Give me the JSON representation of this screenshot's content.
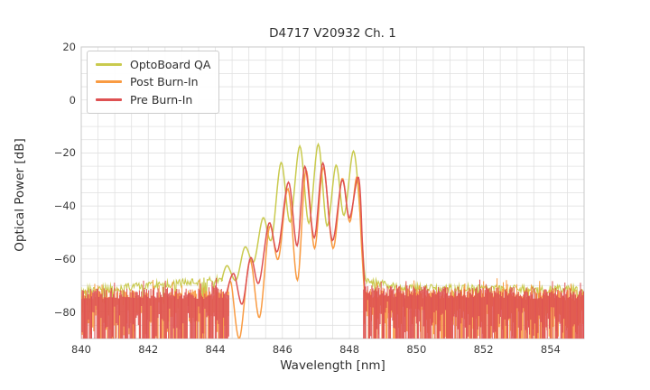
{
  "chart_data": {
    "type": "line",
    "title": "D4717 V20932 Ch. 1",
    "xlabel": "Wavelength [nm]",
    "ylabel": "Optical Power [dB]",
    "xlim": [
      840,
      855
    ],
    "ylim": [
      -90,
      20
    ],
    "x_ticks": [
      840,
      842,
      844,
      846,
      848,
      850,
      852,
      854
    ],
    "y_ticks": [
      20,
      0,
      -20,
      -40,
      -60,
      -80
    ],
    "grid": {
      "show": true,
      "x_step": 0.5,
      "y_step": 5,
      "color": "#e1e1e1",
      "spine_color": "#c8c8c8"
    },
    "legend": {
      "position": "upper-left"
    },
    "noise_seed": 20932,
    "series": [
      {
        "name": "OptoBoard QA",
        "color": "#c9ca4e",
        "noise_style": "band",
        "noise_ranges": [
          {
            "x": [
              840.0,
              844.22
            ],
            "top": [
              -72.0,
              -67.8
            ]
          },
          {
            "x": [
              848.5,
              849.6
            ],
            "top": [
              -68.3,
              -71.0
            ]
          },
          {
            "x": [
              849.6,
              855.0
            ],
            "top": [
              -71.0,
              -71.3
            ]
          }
        ],
        "noise": {
          "jitter": 1.4,
          "spike_prob": 0.1,
          "spike_depth": [
            4,
            9
          ]
        },
        "curve_points": [
          [
            844.18,
            -68.5
          ],
          [
            844.35,
            -62.5
          ],
          [
            844.62,
            -68.0
          ],
          [
            844.88,
            -55.5
          ],
          [
            845.15,
            -61.0
          ],
          [
            845.42,
            -44.5
          ],
          [
            845.68,
            -52.5
          ],
          [
            845.96,
            -23.6
          ],
          [
            846.23,
            -46.0
          ],
          [
            846.52,
            -17.4
          ],
          [
            846.79,
            -46.5
          ],
          [
            847.07,
            -16.7
          ],
          [
            847.33,
            -47.5
          ],
          [
            847.6,
            -24.6
          ],
          [
            847.84,
            -43.5
          ],
          [
            848.12,
            -19.3
          ],
          [
            848.33,
            -45.0
          ],
          [
            848.44,
            -64.0
          ],
          [
            848.5,
            -68.5
          ]
        ]
      },
      {
        "name": "Post Burn-In",
        "color": "#f99b42",
        "noise_style": "spikes",
        "noise_ranges": [
          {
            "x": [
              840.0,
              844.42
            ],
            "top": [
              -73.6,
              -73.2
            ]
          },
          {
            "x": [
              848.44,
              855.0
            ],
            "top": [
              -72.6,
              -73.6
            ]
          }
        ],
        "noise": {
          "jitter": 2.0,
          "tall_prob": 0.1,
          "tall_extra": 3,
          "bottom_prob": 0.5,
          "short_depth": [
            5,
            18
          ]
        },
        "curve_points": [
          [
            844.35,
            -74.0
          ],
          [
            844.47,
            -69.0
          ],
          [
            844.72,
            -90.0
          ],
          [
            845.03,
            -60.5
          ],
          [
            845.32,
            -82.0
          ],
          [
            845.61,
            -48.0
          ],
          [
            845.88,
            -60.0
          ],
          [
            846.17,
            -33.5
          ],
          [
            846.45,
            -68.0
          ],
          [
            846.7,
            -26.5
          ],
          [
            846.96,
            -56.0
          ],
          [
            847.22,
            -25.5
          ],
          [
            847.51,
            -56.0
          ],
          [
            847.78,
            -29.7
          ],
          [
            848.01,
            -46.0
          ],
          [
            848.23,
            -29.1
          ],
          [
            848.37,
            -57.0
          ],
          [
            848.45,
            -74.0
          ]
        ]
      },
      {
        "name": "Pre Burn-In",
        "color": "#de5152",
        "noise_style": "spikes",
        "noise_ranges": [
          {
            "x": [
              840.0,
              844.42
            ],
            "top": [
              -73.2,
              -72.8
            ]
          },
          {
            "x": [
              848.42,
              855.0
            ],
            "top": [
              -71.8,
              -73.2
            ]
          }
        ],
        "noise": {
          "jitter": 2.2,
          "tall_prob": 0.12,
          "tall_extra": 3,
          "bottom_prob": 0.6,
          "short_depth": [
            5,
            16
          ]
        },
        "curve_points": [
          [
            844.33,
            -73.0
          ],
          [
            844.55,
            -65.5
          ],
          [
            844.8,
            -77.0
          ],
          [
            845.05,
            -59.5
          ],
          [
            845.3,
            -69.0
          ],
          [
            845.6,
            -46.5
          ],
          [
            845.86,
            -57.0
          ],
          [
            846.18,
            -31.0
          ],
          [
            846.44,
            -55.0
          ],
          [
            846.67,
            -25.1
          ],
          [
            846.95,
            -52.0
          ],
          [
            847.21,
            -23.8
          ],
          [
            847.49,
            -53.0
          ],
          [
            847.78,
            -30.2
          ],
          [
            848.0,
            -44.5
          ],
          [
            848.27,
            -29.2
          ],
          [
            848.39,
            -55.0
          ],
          [
            848.46,
            -73.0
          ]
        ]
      }
    ]
  }
}
